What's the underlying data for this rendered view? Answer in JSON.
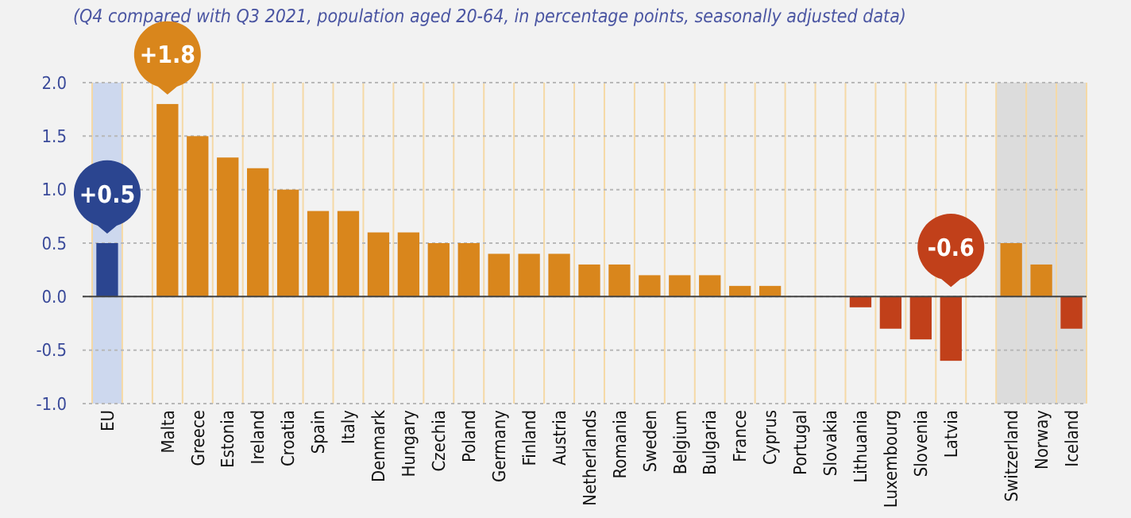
{
  "chart_data": {
    "type": "bar",
    "subtitle": "(Q4 compared with Q3 2021, population aged 20-64, in percentage points, seasonally adjusted data)",
    "categories": [
      "EU",
      null,
      "Malta",
      "Greece",
      "Estonia",
      "Ireland",
      "Croatia",
      "Spain",
      "Italy",
      "Denmark",
      "Hungary",
      "Czechia",
      "Poland",
      "Germany",
      "Finland",
      "Austria",
      "Netherlands",
      "Romania",
      "Sweden",
      "Belgium",
      "Bulgaria",
      "France",
      "Cyprus",
      "Portugal",
      "Slovakia",
      "Lithuania",
      "Luxembourg",
      "Slovenia",
      "Latvia",
      null,
      "Switzerland",
      "Norway",
      "Iceland"
    ],
    "values": [
      0.5,
      null,
      1.8,
      1.5,
      1.3,
      1.2,
      1.0,
      0.8,
      0.8,
      0.6,
      0.6,
      0.5,
      0.5,
      0.4,
      0.4,
      0.4,
      0.3,
      0.3,
      0.2,
      0.2,
      0.2,
      0.1,
      0.1,
      0,
      0,
      -0.1,
      -0.3,
      -0.4,
      -0.6,
      null,
      0.5,
      0.3,
      -0.3
    ],
    "colors": [
      "#2b4590",
      null,
      "#d9861c",
      "#d9861c",
      "#d9861c",
      "#d9861c",
      "#d9861c",
      "#d9861c",
      "#d9861c",
      "#d9861c",
      "#d9861c",
      "#d9861c",
      "#d9861c",
      "#d9861c",
      "#d9861c",
      "#d9861c",
      "#d9861c",
      "#d9861c",
      "#d9861c",
      "#d9861c",
      "#d9861c",
      "#d9861c",
      "#d9861c",
      "#d9861c",
      "#d9861c",
      "#c1401a",
      "#c1401a",
      "#c1401a",
      "#c1401a",
      null,
      "#d9861c",
      "#d9861c",
      "#c1401a"
    ],
    "value_labels": [
      "+0.5",
      null,
      "+1.8",
      null,
      null,
      null,
      null,
      null,
      null,
      null,
      null,
      null,
      null,
      null,
      null,
      null,
      null,
      null,
      null,
      null,
      null,
      null,
      null,
      null,
      null,
      null,
      null,
      null,
      "-0.6",
      null,
      null,
      null,
      null
    ],
    "ylim": [
      -1.0,
      2.0
    ],
    "yticks": [
      {
        "value": -1.0,
        "label": "-1.0"
      },
      {
        "value": -0.5,
        "label": "-0.5"
      },
      {
        "value": 0,
        "label": "0.0"
      },
      {
        "value": 0.5,
        "label": "0.5"
      },
      {
        "value": 1.0,
        "label": "1.0"
      },
      {
        "value": 1.5,
        "label": "1.5"
      },
      {
        "value": 2.0,
        "label": "2.0"
      }
    ],
    "bands": [
      {
        "axis": "x",
        "from": "EU",
        "to": "EU",
        "color": "#cdd8ee"
      },
      {
        "axis": "x",
        "from": "Switzerland",
        "to": "Iceland",
        "color": "#dcdcdc"
      }
    ],
    "grid": true
  }
}
